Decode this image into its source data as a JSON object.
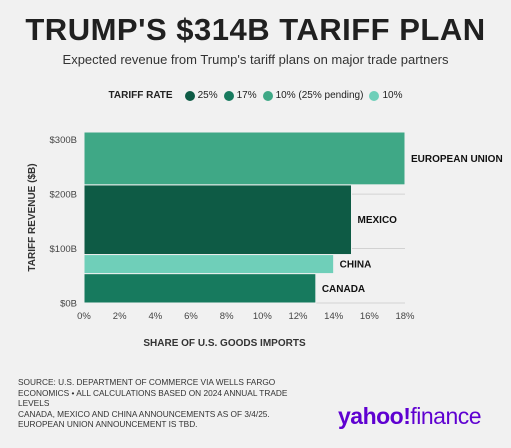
{
  "title": "TRUMP'S $314B TARIFF PLAN",
  "subtitle": "Expected revenue from Trump's tariff plans on major trade partners",
  "legend": {
    "title": "TARIFF RATE",
    "items": [
      {
        "label": "25%",
        "color": "#0e5b45"
      },
      {
        "label": "17%",
        "color": "#177a5e"
      },
      {
        "label": "10% (25% pending)",
        "color": "#3fa886"
      },
      {
        "label": "10%",
        "color": "#6fcfb9"
      }
    ]
  },
  "chart_data": {
    "type": "bar",
    "xlabel": "SHARE OF U.S. GOODS IMPORTS",
    "ylabel": "TARIFF REVENUE ($B)",
    "xlim": [
      0,
      18
    ],
    "ylim": [
      0,
      314
    ],
    "x_ticks": [
      "0%",
      "2%",
      "4%",
      "6%",
      "8%",
      "10%",
      "12%",
      "14%",
      "16%",
      "18%"
    ],
    "y_ticks": [
      {
        "value": 0,
        "label": "$0B"
      },
      {
        "value": 100,
        "label": "$100B"
      },
      {
        "value": 200,
        "label": "$200B"
      },
      {
        "value": 300,
        "label": "$300B"
      }
    ],
    "bars": [
      {
        "name": "CANADA",
        "share": 13,
        "revenue": 54,
        "color": "#177a5e"
      },
      {
        "name": "CHINA",
        "share": 14,
        "revenue": 35,
        "color": "#6fcfb9"
      },
      {
        "name": "MEXICO",
        "share": 15,
        "revenue": 128,
        "color": "#0e5b45"
      },
      {
        "name": "EUROPEAN UNION",
        "share": 18,
        "revenue": 97,
        "color": "#3fa886"
      }
    ]
  },
  "source_lines": [
    "SOURCE: U.S. DEPARTMENT OF COMMERCE VIA WELLS FARGO",
    "ECONOMICS • ALL CALCULATIONS BASED ON 2024 ANNUAL TRADE",
    "LEVELS",
    "CANADA, MEXICO AND CHINA ANNOUNCEMENTS AS OF 3/4/25.",
    "EUROPEAN UNION ANNOUNCEMENT IS TBD."
  ],
  "logo": {
    "brand": "yahoo!",
    "product": "finance"
  }
}
